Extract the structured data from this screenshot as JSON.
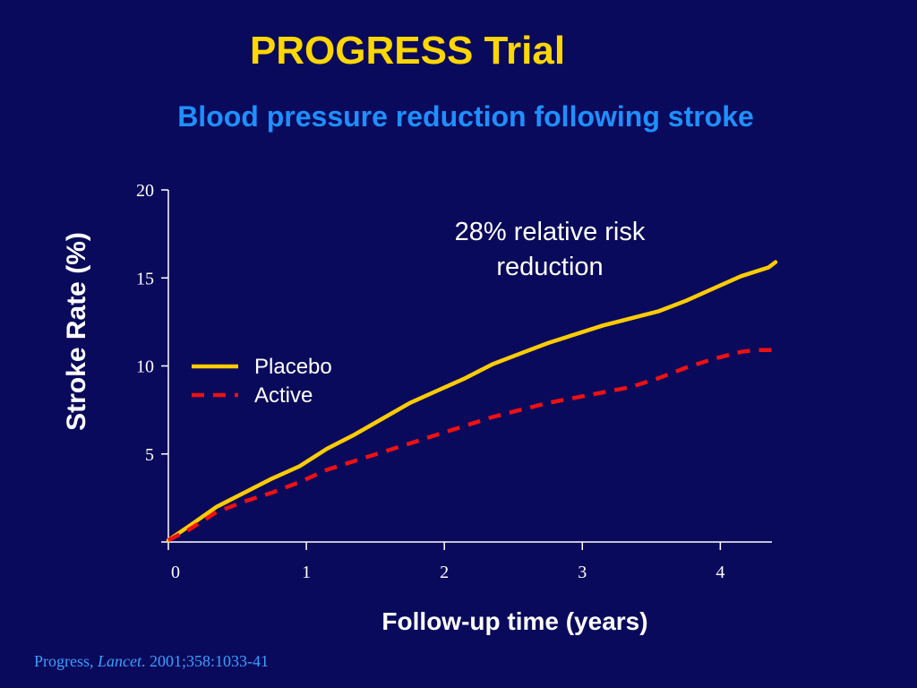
{
  "slide": {
    "title": "PROGRESS Trial",
    "subtitle": "Blood pressure reduction following stroke",
    "citation_author": "Progress, ",
    "citation_journal": "Lancet",
    "citation_rest": ". 2001;358:1033-41"
  },
  "colors": {
    "background": "#0a0a5c",
    "title": "#ffd700",
    "subtitle": "#1e90ff",
    "placebo": "#ffcc00",
    "active": "#ee1111",
    "axis": "#ffffff"
  },
  "chart_data": {
    "type": "line",
    "title": "",
    "xlabel": "Follow-up time (years)",
    "ylabel": "Stroke Rate (%)",
    "xlim": [
      0,
      4.4
    ],
    "ylim": [
      0,
      20
    ],
    "xticks": [
      0,
      1,
      2,
      3,
      4
    ],
    "yticks": [
      5,
      10,
      15,
      20
    ],
    "grid": false,
    "legend_position": "left",
    "annotation_line1": "28% relative risk",
    "annotation_line2": "reduction",
    "series": [
      {
        "name": "Placebo",
        "style": "solid",
        "x": [
          0,
          0.15,
          0.35,
          0.55,
          0.75,
          0.95,
          1.15,
          1.35,
          1.55,
          1.75,
          1.95,
          2.15,
          2.35,
          2.55,
          2.75,
          2.95,
          3.15,
          3.35,
          3.55,
          3.75,
          3.95,
          4.15,
          4.35,
          4.4
        ],
        "values": [
          0.1,
          0.9,
          2.0,
          2.8,
          3.6,
          4.3,
          5.3,
          6.1,
          7.0,
          7.9,
          8.6,
          9.3,
          10.1,
          10.7,
          11.3,
          11.8,
          12.3,
          12.7,
          13.1,
          13.7,
          14.4,
          15.1,
          15.6,
          15.9
        ]
      },
      {
        "name": "Active",
        "style": "dashed",
        "x": [
          0,
          0.15,
          0.35,
          0.55,
          0.75,
          0.95,
          1.15,
          1.35,
          1.55,
          1.75,
          1.95,
          2.15,
          2.35,
          2.55,
          2.75,
          2.95,
          3.15,
          3.35,
          3.55,
          3.75,
          3.95,
          4.15,
          4.25,
          4.4
        ],
        "values": [
          0.1,
          0.7,
          1.7,
          2.3,
          2.8,
          3.4,
          4.1,
          4.6,
          5.1,
          5.6,
          6.1,
          6.6,
          7.1,
          7.5,
          7.9,
          8.2,
          8.5,
          8.8,
          9.3,
          9.9,
          10.4,
          10.8,
          10.9,
          10.9
        ]
      }
    ]
  }
}
